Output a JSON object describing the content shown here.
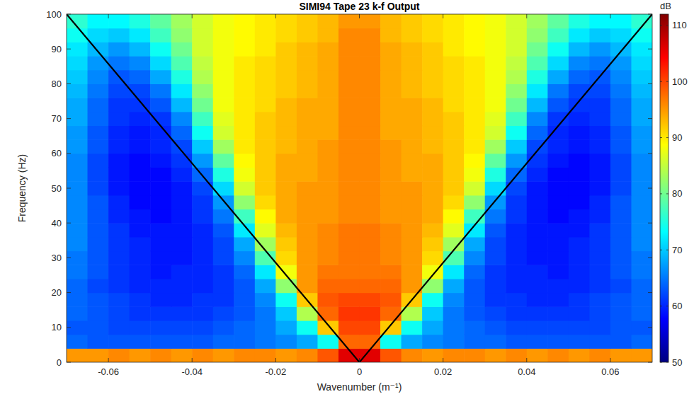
{
  "chart_data": {
    "type": "heatmap",
    "title": "SIMI94 Tape 23 k-f Output",
    "x_label": "Wavenumber (m⁻¹)",
    "y_label": "Frequency (Hz)",
    "xlim": [
      -0.07,
      0.07
    ],
    "ylim": [
      0,
      100
    ],
    "xticks": [
      -0.06,
      -0.04,
      -0.02,
      0,
      0.02,
      0.04,
      0.06
    ],
    "yticks": [
      0,
      10,
      20,
      30,
      40,
      50,
      60,
      70,
      80,
      90,
      100
    ],
    "grid": false,
    "x_edges": [
      -0.07,
      -0.065,
      -0.06,
      -0.055,
      -0.05,
      -0.045,
      -0.04,
      -0.035,
      -0.03,
      -0.025,
      -0.02,
      -0.015,
      -0.01,
      -0.005,
      0,
      0.005,
      0.01,
      0.015,
      0.02,
      0.025,
      0.03,
      0.035,
      0.04,
      0.045,
      0.05,
      0.055,
      0.06,
      0.065,
      0.07
    ],
    "y_edges": [
      0,
      4,
      8,
      12,
      16,
      20,
      24,
      28,
      32,
      36,
      40,
      44,
      48,
      52,
      56,
      60,
      64,
      68,
      72,
      76,
      80,
      84,
      88,
      92,
      96,
      100
    ],
    "cells": [
      [
        95,
        95,
        96,
        95,
        96,
        95,
        96,
        95,
        96,
        96,
        95,
        96,
        99,
        106,
        106,
        99,
        96,
        95,
        96,
        96,
        95,
        96,
        95,
        96,
        95,
        96,
        95,
        95
      ],
      [
        64,
        63,
        63,
        63,
        63,
        63,
        63,
        64,
        64,
        65,
        66,
        68,
        74,
        98,
        98,
        74,
        68,
        66,
        65,
        64,
        64,
        63,
        63,
        63,
        63,
        63,
        63,
        64
      ],
      [
        63,
        63,
        62,
        62,
        62,
        62,
        62,
        63,
        64,
        65,
        68,
        74,
        92,
        100,
        100,
        92,
        74,
        68,
        65,
        64,
        63,
        62,
        62,
        62,
        62,
        62,
        63,
        63
      ],
      [
        64,
        63,
        62,
        61,
        61,
        61,
        61,
        62,
        63,
        65,
        70,
        84,
        98,
        101,
        101,
        98,
        84,
        70,
        65,
        63,
        62,
        61,
        61,
        61,
        61,
        62,
        63,
        64
      ],
      [
        64,
        63,
        62,
        61,
        60,
        60,
        61,
        61,
        63,
        66,
        74,
        92,
        99,
        100,
        100,
        99,
        92,
        74,
        66,
        63,
        61,
        61,
        60,
        60,
        61,
        62,
        63,
        64
      ],
      [
        64,
        62,
        61,
        60,
        60,
        60,
        60,
        61,
        63,
        68,
        82,
        95,
        98,
        98,
        98,
        98,
        95,
        82,
        68,
        63,
        61,
        60,
        60,
        60,
        60,
        61,
        62,
        64
      ],
      [
        65,
        63,
        61,
        60,
        59,
        60,
        60,
        61,
        64,
        72,
        88,
        95,
        97,
        97,
        97,
        97,
        95,
        88,
        72,
        64,
        61,
        60,
        60,
        59,
        60,
        61,
        63,
        65
      ],
      [
        65,
        63,
        61,
        60,
        59,
        59,
        60,
        62,
        66,
        78,
        91,
        95,
        96,
        97,
        97,
        96,
        95,
        91,
        78,
        66,
        62,
        60,
        59,
        59,
        60,
        61,
        63,
        65
      ],
      [
        66,
        63,
        61,
        60,
        59,
        59,
        60,
        62,
        68,
        83,
        92,
        95,
        96,
        97,
        97,
        96,
        95,
        92,
        83,
        68,
        62,
        60,
        59,
        59,
        60,
        61,
        63,
        66
      ],
      [
        66,
        63,
        61,
        59,
        59,
        59,
        60,
        63,
        72,
        87,
        93,
        95,
        96,
        97,
        97,
        96,
        95,
        93,
        87,
        72,
        63,
        60,
        59,
        59,
        59,
        61,
        63,
        66
      ],
      [
        66,
        63,
        60,
        59,
        58,
        59,
        61,
        65,
        77,
        89,
        94,
        95,
        95,
        96,
        96,
        95,
        95,
        94,
        89,
        77,
        65,
        61,
        59,
        58,
        59,
        60,
        63,
        66
      ],
      [
        66,
        63,
        60,
        58,
        58,
        59,
        61,
        67,
        82,
        91,
        94,
        95,
        95,
        96,
        96,
        95,
        95,
        94,
        91,
        82,
        67,
        61,
        59,
        58,
        58,
        60,
        63,
        66
      ],
      [
        66,
        62,
        59,
        58,
        58,
        59,
        62,
        71,
        86,
        92,
        94,
        95,
        95,
        96,
        96,
        95,
        95,
        94,
        92,
        86,
        71,
        62,
        59,
        58,
        58,
        59,
        62,
        66
      ],
      [
        66,
        62,
        59,
        58,
        58,
        60,
        64,
        75,
        88,
        92,
        94,
        94,
        95,
        96,
        96,
        95,
        94,
        94,
        92,
        88,
        75,
        64,
        60,
        58,
        58,
        59,
        62,
        66
      ],
      [
        66,
        62,
        59,
        58,
        59,
        61,
        67,
        79,
        89,
        92,
        94,
        94,
        95,
        96,
        96,
        95,
        94,
        94,
        92,
        89,
        79,
        67,
        61,
        59,
        58,
        59,
        62,
        66
      ],
      [
        67,
        63,
        60,
        59,
        60,
        62,
        70,
        83,
        90,
        92,
        93,
        94,
        95,
        96,
        96,
        95,
        94,
        93,
        92,
        90,
        83,
        70,
        62,
        60,
        59,
        60,
        63,
        67
      ],
      [
        67,
        63,
        60,
        59,
        60,
        64,
        74,
        86,
        90,
        92,
        93,
        94,
        94,
        96,
        96,
        94,
        94,
        93,
        92,
        90,
        86,
        74,
        64,
        60,
        59,
        60,
        63,
        67
      ],
      [
        68,
        64,
        61,
        60,
        61,
        66,
        77,
        87,
        90,
        92,
        93,
        94,
        94,
        96,
        96,
        94,
        94,
        93,
        92,
        90,
        87,
        77,
        66,
        61,
        60,
        61,
        64,
        68
      ],
      [
        68,
        64,
        61,
        61,
        63,
        69,
        80,
        88,
        90,
        91,
        93,
        94,
        94,
        96,
        96,
        94,
        94,
        93,
        91,
        90,
        88,
        80,
        69,
        63,
        61,
        61,
        64,
        68
      ],
      [
        69,
        65,
        62,
        62,
        65,
        72,
        82,
        88,
        90,
        91,
        92,
        93,
        94,
        96,
        96,
        94,
        93,
        92,
        91,
        90,
        88,
        82,
        72,
        65,
        62,
        62,
        65,
        69
      ],
      [
        70,
        66,
        63,
        64,
        68,
        75,
        84,
        88,
        90,
        91,
        92,
        93,
        94,
        96,
        96,
        94,
        93,
        92,
        91,
        90,
        88,
        84,
        75,
        68,
        64,
        63,
        66,
        70
      ],
      [
        71,
        67,
        65,
        66,
        71,
        78,
        85,
        88,
        90,
        91,
        92,
        93,
        94,
        96,
        96,
        94,
        93,
        92,
        91,
        90,
        88,
        85,
        78,
        71,
        66,
        65,
        67,
        71
      ],
      [
        72,
        69,
        67,
        69,
        74,
        80,
        86,
        88,
        89,
        90,
        92,
        93,
        94,
        96,
        96,
        94,
        93,
        92,
        90,
        89,
        88,
        86,
        80,
        74,
        69,
        67,
        69,
        72
      ],
      [
        74,
        71,
        70,
        72,
        77,
        82,
        86,
        88,
        89,
        90,
        91,
        92,
        93,
        96,
        96,
        93,
        92,
        91,
        90,
        89,
        88,
        86,
        82,
        77,
        72,
        70,
        71,
        74
      ],
      [
        76,
        73,
        73,
        75,
        79,
        83,
        86,
        88,
        89,
        90,
        91,
        92,
        93,
        95,
        95,
        93,
        92,
        91,
        90,
        89,
        88,
        86,
        83,
        79,
        75,
        73,
        73,
        76
      ]
    ],
    "colorbar": {
      "label": "dB",
      "lim": [
        50,
        112
      ],
      "ticks": [
        50,
        60,
        70,
        80,
        90,
        100,
        110
      ]
    },
    "series": [
      {
        "type": "line",
        "color": "#000000",
        "x": [
          -0.07,
          0,
          0.07
        ],
        "y": [
          100,
          0,
          100
        ]
      }
    ]
  }
}
